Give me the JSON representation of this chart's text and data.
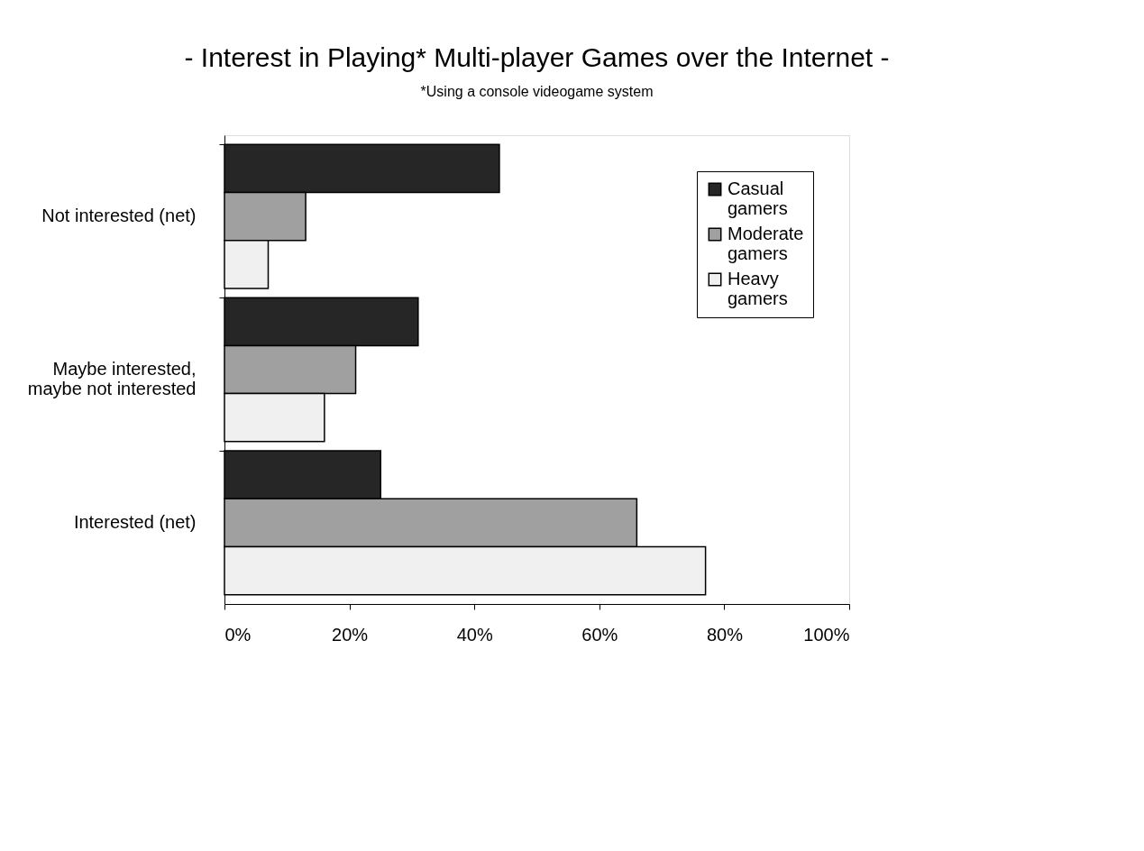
{
  "chart_data": {
    "type": "bar",
    "orientation": "horizontal",
    "title": " - Interest in Playing* Multi-player Games over the Internet -",
    "subtitle": "*Using a console videogame system",
    "categories": [
      "Not interested (net)",
      "Maybe interested, maybe not interested",
      "Interested (net)"
    ],
    "series": [
      {
        "name": "Casual gamers",
        "color": "#262626",
        "values": [
          44,
          31,
          25
        ]
      },
      {
        "name": "Moderate gamers",
        "color": "#a0a0a0",
        "values": [
          13,
          21,
          66
        ]
      },
      {
        "name": "Heavy gamers",
        "color": "#f0f0f0",
        "values": [
          7,
          16,
          77
        ]
      }
    ],
    "xlim": [
      0,
      100
    ],
    "xticks": [
      {
        "value": 0,
        "label": "0%"
      },
      {
        "value": 20,
        "label": "20%"
      },
      {
        "value": 40,
        "label": "40%"
      },
      {
        "value": 60,
        "label": "60%"
      },
      {
        "value": 80,
        "label": "80%"
      },
      {
        "value": 100,
        "label": "100%"
      }
    ],
    "grid": false,
    "legend": "top right"
  }
}
